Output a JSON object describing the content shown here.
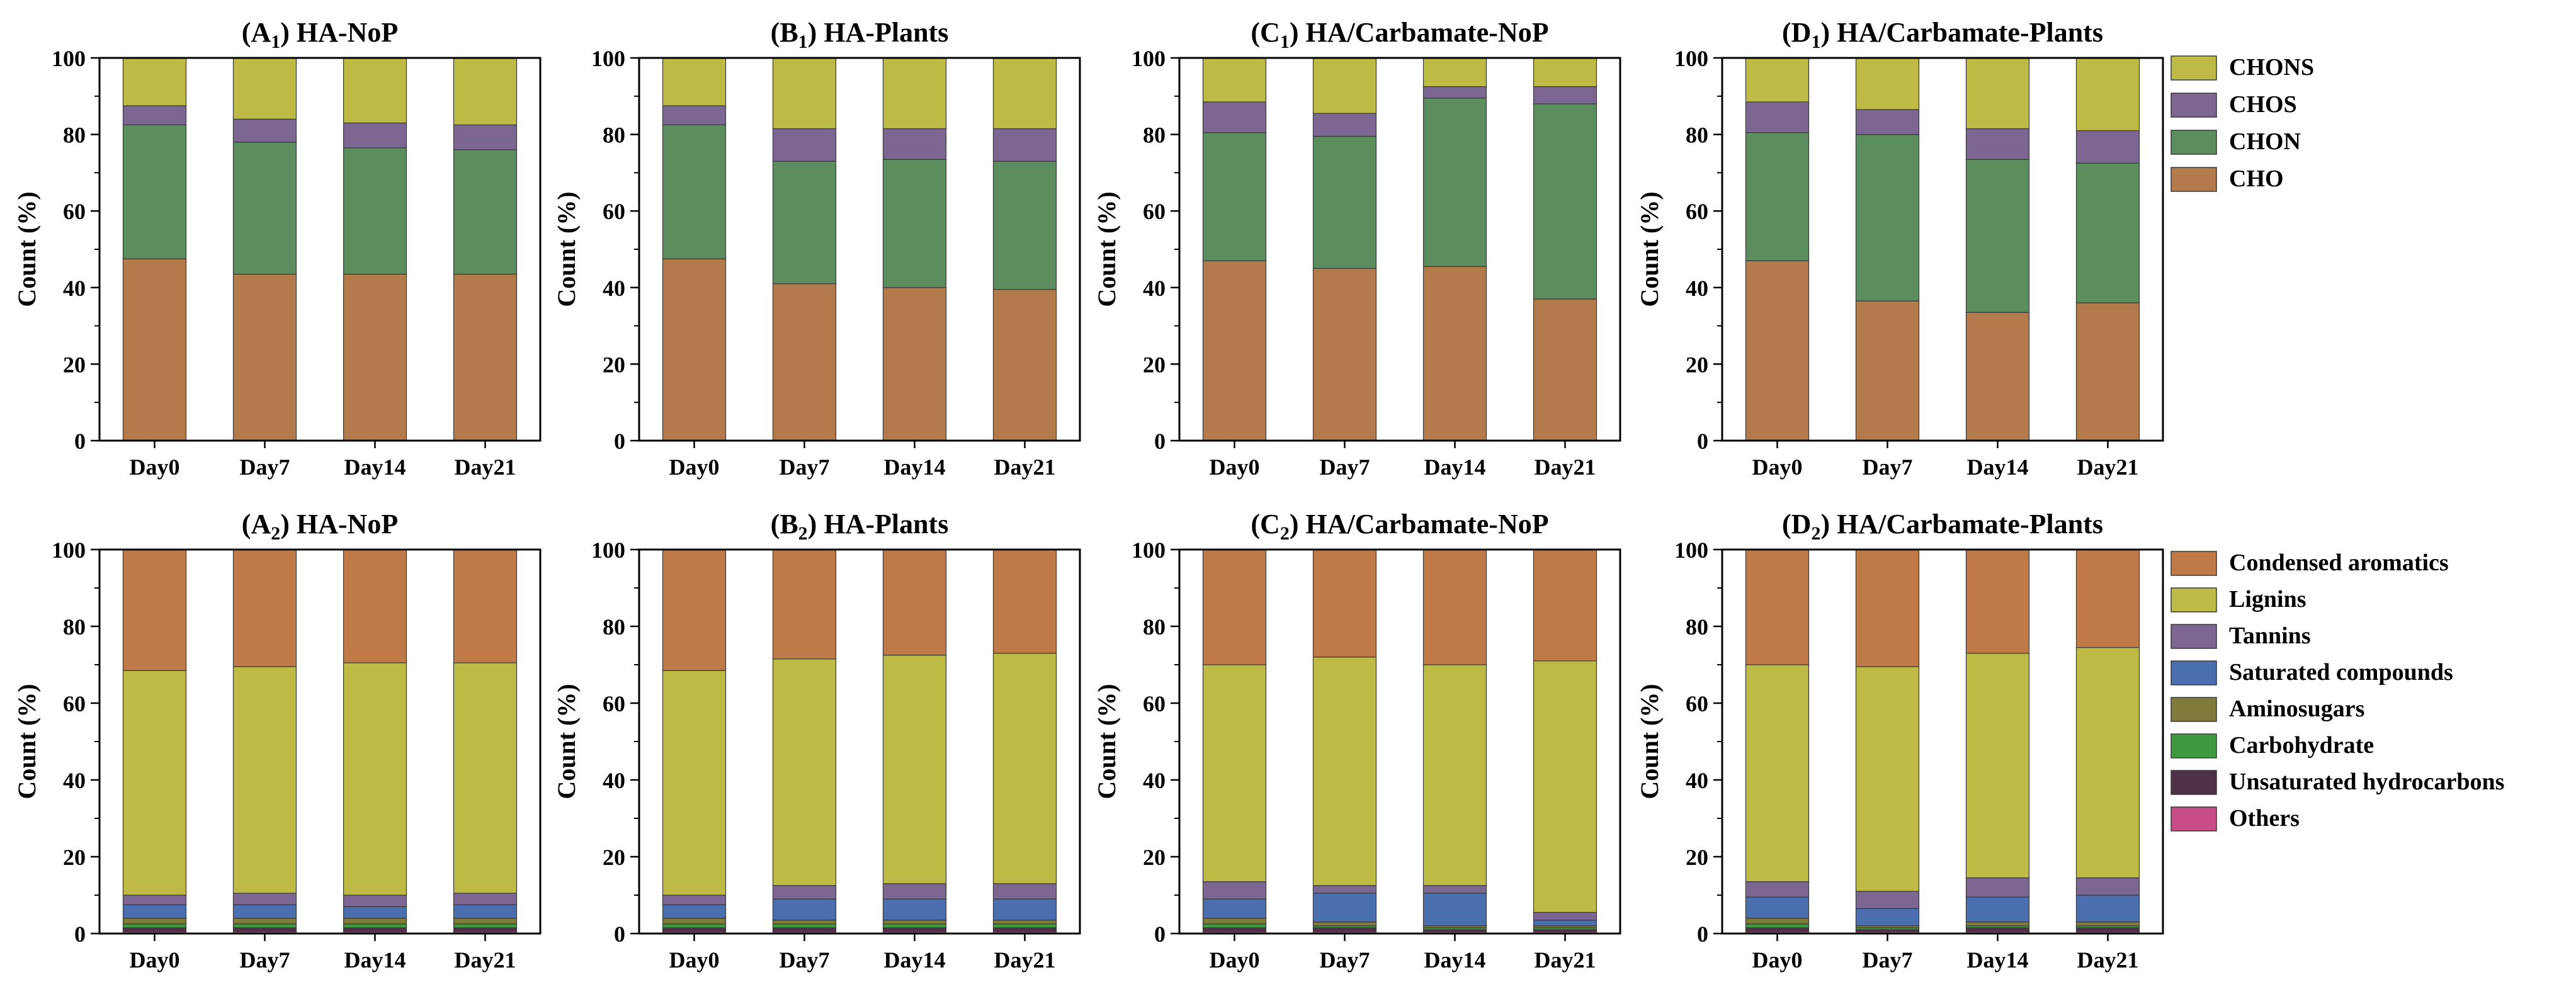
{
  "colors": {
    "CHO": "#B37B4B",
    "CHON": "#5B8D5E",
    "CHOS": "#7C6792",
    "CHONS": "#BDBA46",
    "Condensed aromatics": "#C07A47",
    "Lignins": "#BDBA46",
    "Tannins": "#7C6792",
    "Saturated compounds": "#4B6FAE",
    "Aminosugars": "#7F7B3B",
    "Carbohydrate": "#3D9A3F",
    "Unsaturated hydrocarbons": "#4E3147",
    "Others": "#C74C87"
  },
  "legends": {
    "element": [
      "CHONS",
      "CHOS",
      "CHON",
      "CHO"
    ],
    "compound": [
      "Condensed aromatics",
      "Lignins",
      "Tannins",
      "Saturated compounds",
      "Aminosugars",
      "Carbohydrate",
      "Unsaturated hydrocarbons",
      "Others"
    ]
  },
  "chart_data": [
    {
      "type": "bar",
      "stacked": true,
      "panel": "A1",
      "title": "(A1) HA-NoP",
      "title_main": "HA-NoP",
      "title_letter": "A",
      "title_sub": "1",
      "ylabel": "Count (%)",
      "ylim": [
        0,
        100
      ],
      "yticks": [
        0,
        20,
        40,
        60,
        80,
        100
      ],
      "categories": [
        "Day0",
        "Day7",
        "Day14",
        "Day21"
      ],
      "series": [
        {
          "name": "CHO",
          "values": [
            47.5,
            43.5,
            43.5,
            43.5
          ]
        },
        {
          "name": "CHON",
          "values": [
            35.0,
            34.5,
            33.0,
            32.5
          ]
        },
        {
          "name": "CHOS",
          "values": [
            5.0,
            6.0,
            6.5,
            6.5
          ]
        },
        {
          "name": "CHONS",
          "values": [
            12.5,
            16.0,
            17.0,
            17.5
          ]
        }
      ]
    },
    {
      "type": "bar",
      "stacked": true,
      "panel": "B1",
      "title": "(B1) HA-Plants",
      "title_main": "HA-Plants",
      "title_letter": "B",
      "title_sub": "1",
      "ylabel": "Count (%)",
      "ylim": [
        0,
        100
      ],
      "yticks": [
        0,
        20,
        40,
        60,
        80,
        100
      ],
      "categories": [
        "Day0",
        "Day7",
        "Day14",
        "Day21"
      ],
      "series": [
        {
          "name": "CHO",
          "values": [
            47.5,
            41.0,
            40.0,
            39.5
          ]
        },
        {
          "name": "CHON",
          "values": [
            35.0,
            32.0,
            33.5,
            33.5
          ]
        },
        {
          "name": "CHOS",
          "values": [
            5.0,
            8.5,
            8.0,
            8.5
          ]
        },
        {
          "name": "CHONS",
          "values": [
            12.5,
            18.5,
            18.5,
            18.5
          ]
        }
      ]
    },
    {
      "type": "bar",
      "stacked": true,
      "panel": "C1",
      "title": "(C1) HA/Carbamate-NoP",
      "title_main": "HA/Carbamate-NoP",
      "title_letter": "C",
      "title_sub": "1",
      "ylabel": "Count (%)",
      "ylim": [
        0,
        100
      ],
      "yticks": [
        0,
        20,
        40,
        60,
        80,
        100
      ],
      "categories": [
        "Day0",
        "Day7",
        "Day14",
        "Day21"
      ],
      "series": [
        {
          "name": "CHO",
          "values": [
            47.0,
            45.0,
            45.5,
            37.0
          ]
        },
        {
          "name": "CHON",
          "values": [
            33.5,
            34.5,
            44.0,
            51.0
          ]
        },
        {
          "name": "CHOS",
          "values": [
            8.0,
            6.0,
            3.0,
            4.5
          ]
        },
        {
          "name": "CHONS",
          "values": [
            11.5,
            14.5,
            7.5,
            7.5
          ]
        }
      ]
    },
    {
      "type": "bar",
      "stacked": true,
      "panel": "D1",
      "title": "(D1) HA/Carbamate-Plants",
      "title_main": "HA/Carbamate-Plants",
      "title_letter": "D",
      "title_sub": "1",
      "ylabel": "Count (%)",
      "ylim": [
        0,
        100
      ],
      "yticks": [
        0,
        20,
        40,
        60,
        80,
        100
      ],
      "categories": [
        "Day0",
        "Day7",
        "Day14",
        "Day21"
      ],
      "series": [
        {
          "name": "CHO",
          "values": [
            47.0,
            36.5,
            33.5,
            36.0
          ]
        },
        {
          "name": "CHON",
          "values": [
            33.5,
            43.5,
            40.0,
            36.5
          ]
        },
        {
          "name": "CHOS",
          "values": [
            8.0,
            6.5,
            8.0,
            8.5
          ]
        },
        {
          "name": "CHONS",
          "values": [
            11.5,
            13.5,
            18.5,
            19.0
          ]
        }
      ]
    },
    {
      "type": "bar",
      "stacked": true,
      "panel": "A2",
      "title": "(A2) HA-NoP",
      "title_main": "HA-NoP",
      "title_letter": "A",
      "title_sub": "2",
      "ylabel": "Count (%)",
      "ylim": [
        0,
        100
      ],
      "yticks": [
        0,
        20,
        40,
        60,
        80,
        100
      ],
      "categories": [
        "Day0",
        "Day7",
        "Day14",
        "Day21"
      ],
      "series": [
        {
          "name": "Others",
          "values": [
            0.5,
            0.5,
            0.5,
            0.5
          ]
        },
        {
          "name": "Unsaturated hydrocarbons",
          "values": [
            1.0,
            1.0,
            1.0,
            1.0
          ]
        },
        {
          "name": "Carbohydrate",
          "values": [
            1.0,
            1.0,
            1.0,
            1.0
          ]
        },
        {
          "name": "Aminosugars",
          "values": [
            1.5,
            1.5,
            1.5,
            1.5
          ]
        },
        {
          "name": "Saturated compounds",
          "values": [
            3.5,
            3.5,
            3.0,
            3.5
          ]
        },
        {
          "name": "Tannins",
          "values": [
            2.5,
            3.0,
            3.0,
            3.0
          ]
        },
        {
          "name": "Lignins",
          "values": [
            58.5,
            59.0,
            60.5,
            60.0
          ]
        },
        {
          "name": "Condensed aromatics",
          "values": [
            31.5,
            30.5,
            29.5,
            29.5
          ]
        }
      ]
    },
    {
      "type": "bar",
      "stacked": true,
      "panel": "B2",
      "title": "(B2) HA-Plants",
      "title_main": "HA-Plants",
      "title_letter": "B",
      "title_sub": "2",
      "ylabel": "Count (%)",
      "ylim": [
        0,
        100
      ],
      "yticks": [
        0,
        20,
        40,
        60,
        80,
        100
      ],
      "categories": [
        "Day0",
        "Day7",
        "Day14",
        "Day21"
      ],
      "series": [
        {
          "name": "Others",
          "values": [
            0.5,
            0.5,
            0.5,
            0.5
          ]
        },
        {
          "name": "Unsaturated hydrocarbons",
          "values": [
            1.0,
            1.0,
            1.0,
            1.0
          ]
        },
        {
          "name": "Carbohydrate",
          "values": [
            1.0,
            1.0,
            1.0,
            1.0
          ]
        },
        {
          "name": "Aminosugars",
          "values": [
            1.5,
            1.0,
            1.0,
            1.0
          ]
        },
        {
          "name": "Saturated compounds",
          "values": [
            3.5,
            5.5,
            5.5,
            5.5
          ]
        },
        {
          "name": "Tannins",
          "values": [
            2.5,
            3.5,
            4.0,
            4.0
          ]
        },
        {
          "name": "Lignins",
          "values": [
            58.5,
            59.0,
            59.5,
            60.0
          ]
        },
        {
          "name": "Condensed aromatics",
          "values": [
            31.5,
            28.5,
            27.5,
            27.0
          ]
        }
      ]
    },
    {
      "type": "bar",
      "stacked": true,
      "panel": "C2",
      "title": "(C2) HA/Carbamate-NoP",
      "title_main": "HA/Carbamate-NoP",
      "title_letter": "C",
      "title_sub": "2",
      "ylabel": "Count (%)",
      "ylim": [
        0,
        100
      ],
      "yticks": [
        0,
        20,
        40,
        60,
        80,
        100
      ],
      "categories": [
        "Day0",
        "Day7",
        "Day14",
        "Day21"
      ],
      "series": [
        {
          "name": "Others",
          "values": [
            0.5,
            0.5,
            0.5,
            0.5
          ]
        },
        {
          "name": "Unsaturated hydrocarbons",
          "values": [
            1.0,
            1.0,
            0.5,
            0.5
          ]
        },
        {
          "name": "Carbohydrate",
          "values": [
            1.0,
            0.5,
            0.5,
            0.5
          ]
        },
        {
          "name": "Aminosugars",
          "values": [
            1.5,
            1.0,
            0.5,
            0.5
          ]
        },
        {
          "name": "Saturated compounds",
          "values": [
            5.0,
            7.5,
            8.5,
            1.5
          ]
        },
        {
          "name": "Tannins",
          "values": [
            4.5,
            2.0,
            2.0,
            2.0
          ]
        },
        {
          "name": "Lignins",
          "values": [
            56.5,
            59.5,
            57.5,
            65.5
          ]
        },
        {
          "name": "Condensed aromatics",
          "values": [
            30.0,
            28.0,
            30.0,
            29.0
          ]
        }
      ]
    },
    {
      "type": "bar",
      "stacked": true,
      "panel": "D2",
      "title": "(D2) HA/Carbamate-Plants",
      "title_main": "HA/Carbamate-Plants",
      "title_letter": "D",
      "title_sub": "2",
      "ylabel": "Count (%)",
      "ylim": [
        0,
        100
      ],
      "yticks": [
        0,
        20,
        40,
        60,
        80,
        100
      ],
      "categories": [
        "Day0",
        "Day7",
        "Day14",
        "Day21"
      ],
      "series": [
        {
          "name": "Others",
          "values": [
            0.5,
            0.5,
            0.5,
            0.5
          ]
        },
        {
          "name": "Unsaturated hydrocarbons",
          "values": [
            1.0,
            0.5,
            1.0,
            1.0
          ]
        },
        {
          "name": "Carbohydrate",
          "values": [
            1.0,
            0.5,
            0.5,
            0.5
          ]
        },
        {
          "name": "Aminosugars",
          "values": [
            1.5,
            0.5,
            1.0,
            1.0
          ]
        },
        {
          "name": "Saturated compounds",
          "values": [
            5.5,
            4.5,
            6.5,
            7.0
          ]
        },
        {
          "name": "Tannins",
          "values": [
            4.0,
            4.5,
            5.0,
            4.5
          ]
        },
        {
          "name": "Lignins",
          "values": [
            56.5,
            58.5,
            58.5,
            60.0
          ]
        },
        {
          "name": "Condensed aromatics",
          "values": [
            30.0,
            30.5,
            27.0,
            25.5
          ]
        }
      ]
    }
  ]
}
